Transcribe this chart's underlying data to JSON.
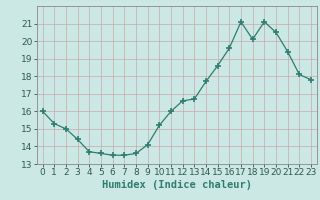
{
  "x": [
    0,
    1,
    2,
    3,
    4,
    5,
    6,
    7,
    8,
    9,
    10,
    11,
    12,
    13,
    14,
    15,
    16,
    17,
    18,
    19,
    20,
    21,
    22,
    23
  ],
  "y": [
    16.0,
    15.3,
    15.0,
    14.4,
    13.7,
    13.6,
    13.5,
    13.5,
    13.6,
    14.1,
    15.2,
    16.0,
    16.6,
    16.7,
    17.7,
    18.6,
    19.6,
    21.1,
    20.1,
    21.1,
    20.5,
    19.4,
    18.1,
    17.8
  ],
  "xlabel": "Humidex (Indice chaleur)",
  "ylim": [
    13,
    22
  ],
  "xlim": [
    -0.5,
    23.5
  ],
  "yticks": [
    13,
    14,
    15,
    16,
    17,
    18,
    19,
    20,
    21
  ],
  "xticks": [
    0,
    1,
    2,
    3,
    4,
    5,
    6,
    7,
    8,
    9,
    10,
    11,
    12,
    13,
    14,
    15,
    16,
    17,
    18,
    19,
    20,
    21,
    22,
    23
  ],
  "line_color": "#2e7d6e",
  "marker": "+",
  "bg_color": "#cce8e4",
  "grid_color": "#b0d4d0",
  "label_fontsize": 7.5,
  "tick_fontsize": 6.5
}
